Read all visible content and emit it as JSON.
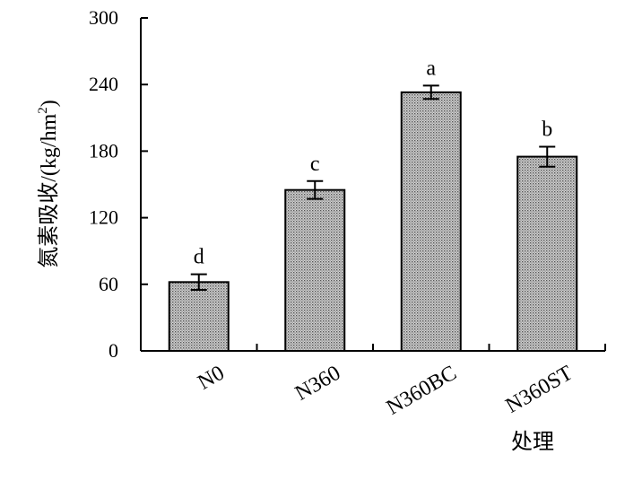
{
  "chart_data": {
    "type": "bar",
    "categories": [
      "N0",
      "N360",
      "N360BC",
      "N360ST"
    ],
    "values": [
      62,
      145,
      233,
      175
    ],
    "errors": [
      7,
      8,
      6,
      9
    ],
    "significance": [
      "d",
      "c",
      "a",
      "b"
    ],
    "xlabel": "处理",
    "ylabel": "氮素吸收/(kg/hm",
    "ylabel_superscript": "2",
    "ylabel_suffix": ")",
    "ylim": [
      0,
      300
    ],
    "yticks": [
      "0",
      "60",
      "120",
      "180",
      "240",
      "300"
    ],
    "grid": false,
    "legend": "none",
    "bar_fill": "dotted gray",
    "colors": {
      "bar_dot": "#555555",
      "bar_bg": "#d0d0d0",
      "axis": "#000000"
    }
  }
}
